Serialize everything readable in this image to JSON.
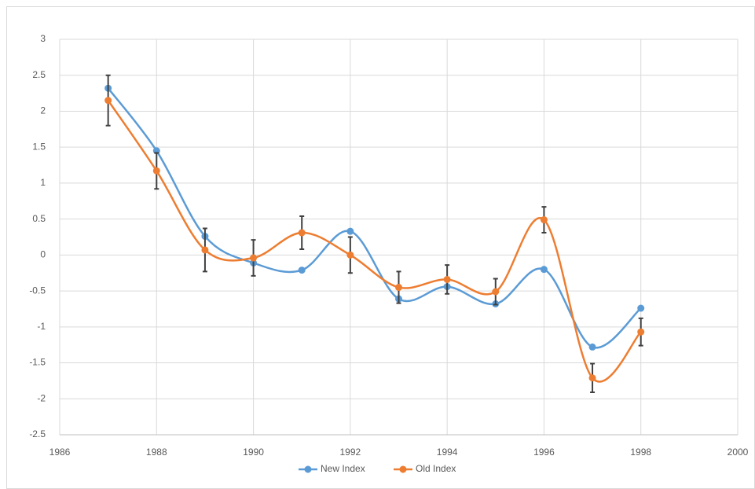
{
  "chart_data": {
    "type": "scatter",
    "x": [
      1987,
      1988,
      1989,
      1990,
      1991,
      1992,
      1993,
      1994,
      1995,
      1996,
      1997,
      1998
    ],
    "series": [
      {
        "name": "New Index",
        "color": "#5b9bd5",
        "values": [
          2.32,
          1.45,
          0.26,
          -0.11,
          -0.21,
          0.33,
          -0.61,
          -0.44,
          -0.68,
          -0.2,
          -1.28,
          -0.74
        ]
      },
      {
        "name": "Old Index",
        "color": "#ed7d31",
        "values": [
          2.15,
          1.17,
          0.07,
          -0.04,
          0.31,
          0.0,
          -0.45,
          -0.34,
          -0.51,
          0.49,
          -1.71,
          -1.07
        ],
        "errors": [
          0.35,
          0.25,
          0.3,
          0.25,
          0.23,
          0.25,
          0.22,
          0.2,
          0.18,
          0.18,
          0.2,
          0.19
        ]
      }
    ],
    "xlim": [
      1986,
      2000
    ],
    "xticks": [
      1986,
      1988,
      1990,
      1992,
      1994,
      1996,
      1998,
      2000
    ],
    "ylim": [
      -2.5,
      3
    ],
    "yticks": [
      3,
      2.5,
      2,
      1.5,
      1,
      0.5,
      0,
      -0.5,
      -1,
      -1.5,
      -2,
      -2.5
    ],
    "grid": true,
    "smooth": true,
    "legend": "bottom"
  }
}
